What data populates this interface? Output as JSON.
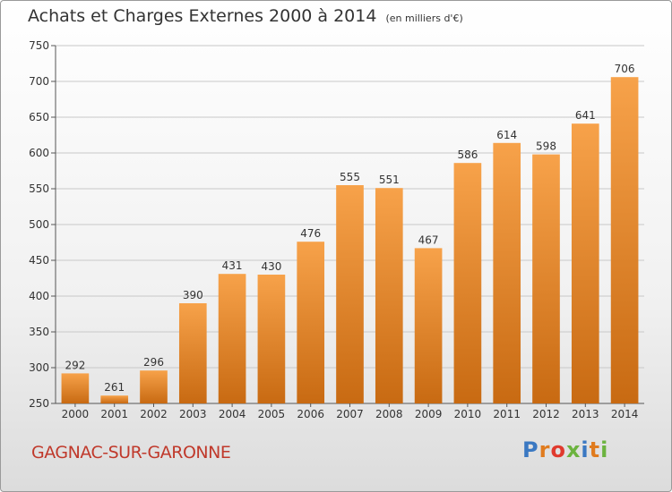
{
  "header": {
    "title": "Achats et Charges Externes 2000 à 2014",
    "subtitle": "(en milliers d'€)"
  },
  "footer": {
    "location": "GAGNAC-SUR-GARONNE",
    "brand": "Proxiti",
    "brand_colors": [
      "#3a78c2",
      "#e07b1e",
      "#e03a2e",
      "#6cb33f",
      "#3a78c2",
      "#e07b1e",
      "#6cb33f"
    ]
  },
  "colors": {
    "bar_top": "#f7a24a",
    "bar_bottom": "#c86a12",
    "grid": "#c8c8c8"
  },
  "chart_data": {
    "type": "bar",
    "title": "Achats et Charges Externes 2000 à 2014",
    "subtitle": "(en milliers d'€)",
    "categories": [
      "2000",
      "2001",
      "2002",
      "2003",
      "2004",
      "2005",
      "2006",
      "2007",
      "2008",
      "2009",
      "2010",
      "2011",
      "2012",
      "2013",
      "2014"
    ],
    "values": [
      292,
      261,
      296,
      390,
      431,
      430,
      476,
      555,
      551,
      467,
      586,
      614,
      598,
      641,
      706
    ],
    "ylim": [
      250,
      750
    ],
    "yticks": [
      250,
      300,
      350,
      400,
      450,
      500,
      550,
      600,
      650,
      700,
      750
    ],
    "grid": true,
    "xlabel": "",
    "ylabel": ""
  }
}
